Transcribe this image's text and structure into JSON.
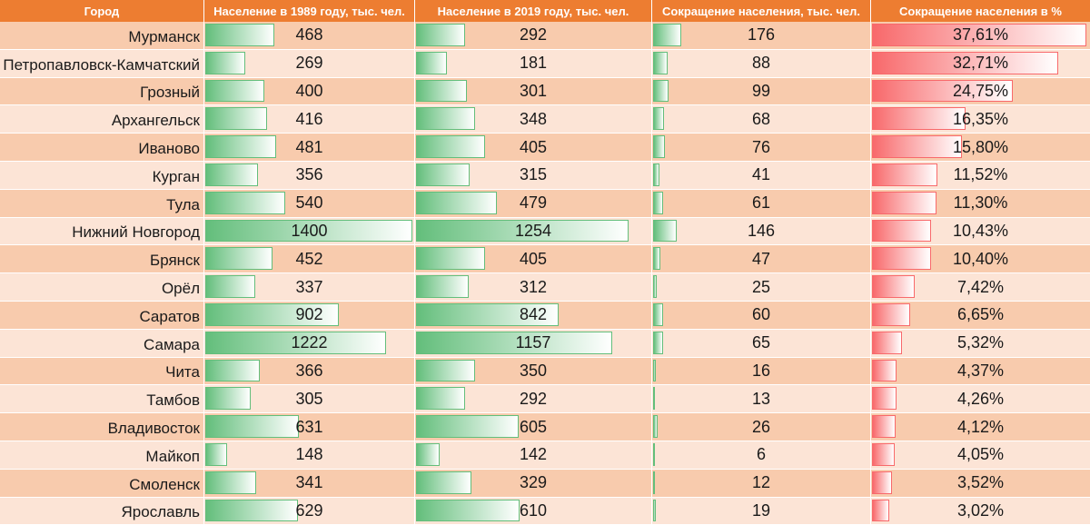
{
  "headers": {
    "city": "Город",
    "pop1989": "Население в 1989 году, тыс. чел.",
    "pop2019": "Население в 2019 году, тыс. чел.",
    "decline": "Сокращение населения, тыс. чел.",
    "decline_pct": "Сокращение населения в %"
  },
  "colors": {
    "header_bg": "#ed7d31",
    "row_odd": "#f8cbad",
    "row_even": "#fce4d6",
    "bar_green": "#63be7b",
    "bar_red": "#f8696b"
  },
  "chart_data": {
    "type": "table",
    "columns": [
      "Город",
      "Население в 1989 году, тыс. чел.",
      "Население в 2019 году, тыс. чел.",
      "Сокращение населения, тыс. чел.",
      "Сокращение населения в %"
    ],
    "rows": [
      {
        "city": "Мурманск",
        "pop1989": "468",
        "pop2019": "292",
        "decline": "176",
        "decline_pct": "37,61%"
      },
      {
        "city": "Петропавловск-Камчатский",
        "pop1989": "269",
        "pop2019": "181",
        "decline": "88",
        "decline_pct": "32,71%"
      },
      {
        "city": "Грозный",
        "pop1989": "400",
        "pop2019": "301",
        "decline": "99",
        "decline_pct": "24,75%"
      },
      {
        "city": "Архангельск",
        "pop1989": "416",
        "pop2019": "348",
        "decline": "68",
        "decline_pct": "16,35%"
      },
      {
        "city": "Иваново",
        "pop1989": "481",
        "pop2019": "405",
        "decline": "76",
        "decline_pct": "15,80%"
      },
      {
        "city": "Курган",
        "pop1989": "356",
        "pop2019": "315",
        "decline": "41",
        "decline_pct": "11,52%"
      },
      {
        "city": "Тула",
        "pop1989": "540",
        "pop2019": "479",
        "decline": "61",
        "decline_pct": "11,30%"
      },
      {
        "city": "Нижний Новгород",
        "pop1989": "1400",
        "pop2019": "1254",
        "decline": "146",
        "decline_pct": "10,43%"
      },
      {
        "city": "Брянск",
        "pop1989": "452",
        "pop2019": "405",
        "decline": "47",
        "decline_pct": "10,40%"
      },
      {
        "city": "Орёл",
        "pop1989": "337",
        "pop2019": "312",
        "decline": "25",
        "decline_pct": "7,42%"
      },
      {
        "city": "Саратов",
        "pop1989": "902",
        "pop2019": "842",
        "decline": "60",
        "decline_pct": "6,65%"
      },
      {
        "city": "Самара",
        "pop1989": "1222",
        "pop2019": "1157",
        "decline": "65",
        "decline_pct": "5,32%"
      },
      {
        "city": "Чита",
        "pop1989": "366",
        "pop2019": "350",
        "decline": "16",
        "decline_pct": "4,37%"
      },
      {
        "city": "Тамбов",
        "pop1989": "305",
        "pop2019": "292",
        "decline": "13",
        "decline_pct": "4,26%"
      },
      {
        "city": "Владивосток",
        "pop1989": "631",
        "pop2019": "605",
        "decline": "26",
        "decline_pct": "4,12%"
      },
      {
        "city": "Майкоп",
        "pop1989": "148",
        "pop2019": "142",
        "decline": "6",
        "decline_pct": "4,05%"
      },
      {
        "city": "Смоленск",
        "pop1989": "341",
        "pop2019": "329",
        "decline": "12",
        "decline_pct": "3,52%"
      },
      {
        "city": "Ярославль",
        "pop1989": "629",
        "pop2019": "610",
        "decline": "19",
        "decline_pct": "3,02%"
      }
    ]
  }
}
